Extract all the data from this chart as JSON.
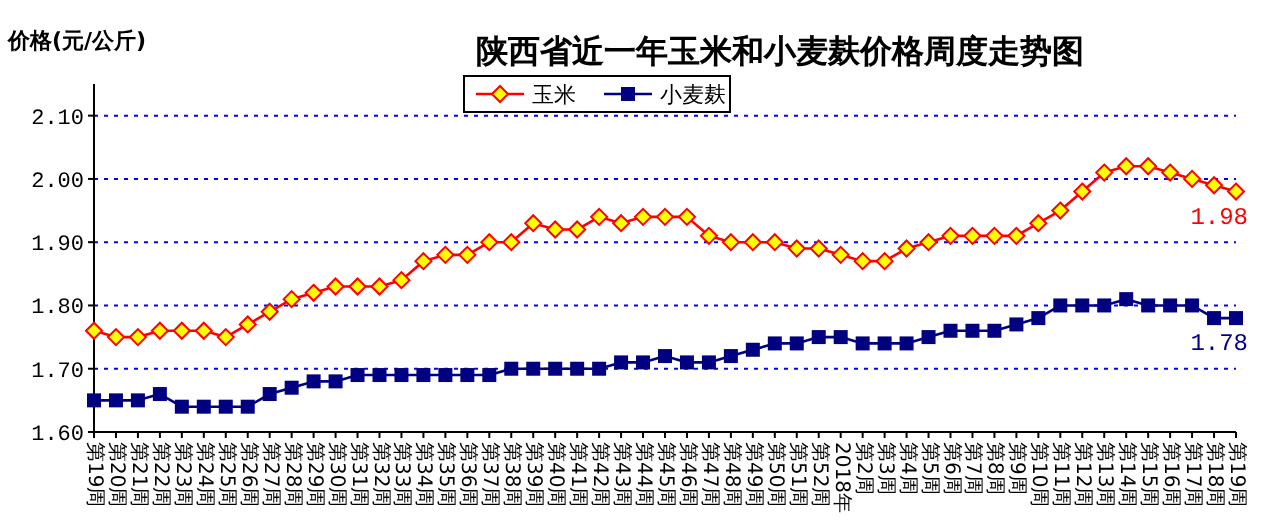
{
  "chart_data": {
    "type": "line",
    "title": "陕西省近一年玉米和小麦麸价格周度走势图",
    "ylabel": "价格(元/公斤)",
    "categories": [
      "第19周",
      "第20周",
      "第21周",
      "第22周",
      "第23周",
      "第24周",
      "第25周",
      "第26周",
      "第27周",
      "第28周",
      "第29周",
      "第30周",
      "第31周",
      "第32周",
      "第33周",
      "第34周",
      "第35周",
      "第36周",
      "第37周",
      "第38周",
      "第39周",
      "第40周",
      "第41周",
      "第42周",
      "第43周",
      "第44周",
      "第45周",
      "第46周",
      "第47周",
      "第48周",
      "第49周",
      "第50周",
      "第51周",
      "第52周",
      "2018年",
      "第2周",
      "第3周",
      "第4周",
      "第5周",
      "第6周",
      "第7周",
      "第8周",
      "第9周",
      "第10周",
      "第11周",
      "第12周",
      "第13周",
      "第14周",
      "第15周",
      "第16周",
      "第17周",
      "第18周",
      "第19周"
    ],
    "series": [
      {
        "name": "玉米",
        "color": "#ff0000",
        "marker": "diamond",
        "values": [
          1.76,
          1.75,
          1.75,
          1.76,
          1.76,
          1.76,
          1.75,
          1.77,
          1.79,
          1.81,
          1.82,
          1.83,
          1.83,
          1.83,
          1.84,
          1.87,
          1.88,
          1.88,
          1.9,
          1.9,
          1.93,
          1.92,
          1.92,
          1.94,
          1.93,
          1.94,
          1.94,
          1.94,
          1.91,
          1.9,
          1.9,
          1.9,
          1.89,
          1.89,
          1.88,
          1.87,
          1.87,
          1.89,
          1.9,
          1.91,
          1.91,
          1.91,
          1.91,
          1.93,
          1.95,
          1.98,
          2.01,
          2.02,
          2.02,
          2.01,
          2.0,
          1.99,
          1.98
        ],
        "value_labels": [
          null,
          null,
          null,
          null,
          null,
          null,
          null,
          null,
          null,
          null,
          null,
          null,
          null,
          null,
          null,
          null,
          null,
          null,
          null,
          null,
          null,
          null,
          null,
          null,
          null,
          null,
          null,
          null,
          null,
          null,
          null,
          null,
          null,
          null,
          null,
          null,
          null,
          null,
          null,
          null,
          null,
          null,
          null,
          null,
          null,
          null,
          null,
          null,
          null,
          null,
          null,
          null,
          "1.98"
        ]
      },
      {
        "name": "小麦麸",
        "color": "#000080",
        "marker": "square",
        "values": [
          1.65,
          1.65,
          1.65,
          1.66,
          1.64,
          1.64,
          1.64,
          1.64,
          1.66,
          1.67,
          1.68,
          1.68,
          1.69,
          1.69,
          1.69,
          1.69,
          1.69,
          1.69,
          1.69,
          1.7,
          1.7,
          1.7,
          1.7,
          1.7,
          1.71,
          1.71,
          1.72,
          1.71,
          1.71,
          1.72,
          1.73,
          1.74,
          1.74,
          1.75,
          1.75,
          1.74,
          1.74,
          1.74,
          1.75,
          1.76,
          1.76,
          1.76,
          1.77,
          1.78,
          1.8,
          1.8,
          1.8,
          1.81,
          1.8,
          1.8,
          1.8,
          1.78,
          1.78
        ],
        "value_labels": [
          null,
          null,
          null,
          null,
          null,
          null,
          null,
          null,
          null,
          null,
          null,
          null,
          null,
          null,
          null,
          null,
          null,
          null,
          null,
          null,
          null,
          null,
          null,
          null,
          null,
          null,
          null,
          null,
          null,
          null,
          null,
          null,
          null,
          null,
          null,
          null,
          null,
          null,
          null,
          null,
          null,
          null,
          null,
          null,
          null,
          null,
          null,
          null,
          null,
          null,
          null,
          null,
          "1.78"
        ]
      }
    ],
    "ylim": [
      1.6,
      2.15
    ],
    "yticks": [
      {
        "value": 1.6,
        "label": "1.60"
      },
      {
        "value": 1.7,
        "label": "1.70"
      },
      {
        "value": 1.8,
        "label": "1.80"
      },
      {
        "value": 1.9,
        "label": "1.90"
      },
      {
        "value": 2.0,
        "label": "2.00"
      },
      {
        "value": 2.1,
        "label": "2.10"
      }
    ],
    "grid": "y",
    "legend": "top",
    "line_style": "solid"
  }
}
